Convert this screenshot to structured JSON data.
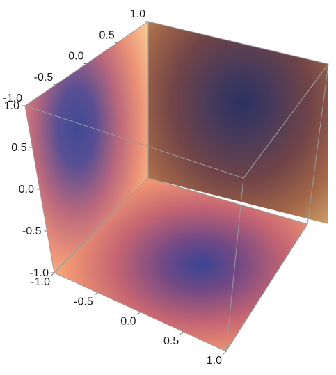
{
  "chart_data": {
    "type": "heatmap",
    "title": "",
    "description_free": true,
    "axes": {
      "x": {
        "ticks": [
          "-1.0",
          "-0.5",
          "0.0",
          "0.5",
          "1.0"
        ],
        "range": [
          -1.0,
          1.0
        ],
        "label": ""
      },
      "y": {
        "ticks": [
          "-1.0",
          "-0.5",
          "0.0",
          "0.5",
          "1.0"
        ],
        "range": [
          -1.0,
          1.0
        ],
        "label": ""
      },
      "z": {
        "ticks": [
          "-1.0",
          "-0.5",
          "0.0",
          "0.5",
          "1.0"
        ],
        "range": [
          -1.0,
          1.0
        ],
        "label": ""
      }
    },
    "faces": [
      {
        "name": "bottom",
        "minimum_at": [
          0.3,
          0.25
        ],
        "min_value": 0.0,
        "max_value": 1.0
      },
      {
        "name": "left",
        "minimum_at": [
          0.0,
          0.45
        ],
        "min_value": 0.0,
        "max_value": 1.0
      },
      {
        "name": "back",
        "minimum_at": [
          0.5,
          0.4
        ],
        "min_value": 0.0,
        "max_value": 1.0
      }
    ],
    "colormap": [
      "#2e3a8c",
      "#6a3d7a",
      "#b4556a",
      "#e8836a",
      "#f5c07a",
      "#fff6b8"
    ],
    "grid": false,
    "legend": "none"
  }
}
